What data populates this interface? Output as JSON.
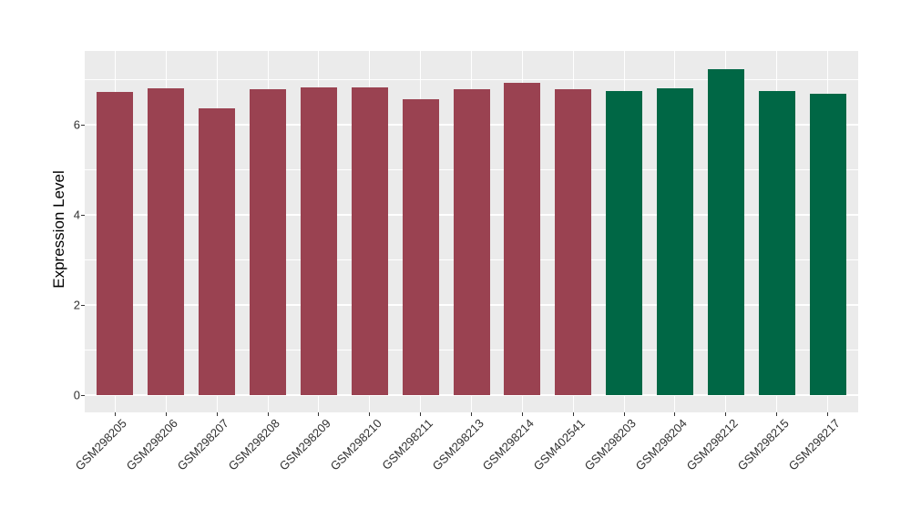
{
  "figure": {
    "background": "#ffffff",
    "panel_background": "#ebebeb",
    "grid_color": "#ffffff",
    "tick_color": "#333333",
    "tick_label_color": "#303030",
    "axis_title_color": "#000000"
  },
  "chart_data": {
    "type": "bar",
    "title": "",
    "xlabel": "",
    "ylabel": "Expression Level",
    "ylim": [
      0,
      7.6
    ],
    "yticks": [
      0,
      2,
      4,
      6
    ],
    "ytick_labels": [
      "0",
      "2",
      "4",
      "6"
    ],
    "minor_grid_y": [
      1,
      3,
      5,
      7
    ],
    "grid": "on",
    "legend_position": "none",
    "categories": [
      "GSM298205",
      "GSM298206",
      "GSM298207",
      "GSM298208",
      "GSM298209",
      "GSM298210",
      "GSM298211",
      "GSM298213",
      "GSM298214",
      "GSM402541",
      "GSM298203",
      "GSM298204",
      "GSM298212",
      "GSM298215",
      "GSM298217"
    ],
    "values": [
      6.72,
      6.81,
      6.36,
      6.79,
      6.82,
      6.82,
      6.57,
      6.79,
      6.93,
      6.79,
      6.75,
      6.81,
      7.23,
      6.75,
      6.68
    ],
    "groups": [
      "A",
      "A",
      "A",
      "A",
      "A",
      "A",
      "A",
      "A",
      "A",
      "A",
      "B",
      "B",
      "B",
      "B",
      "B"
    ],
    "group_colors": {
      "A": "#9a4251",
      "B": "#006745"
    }
  }
}
